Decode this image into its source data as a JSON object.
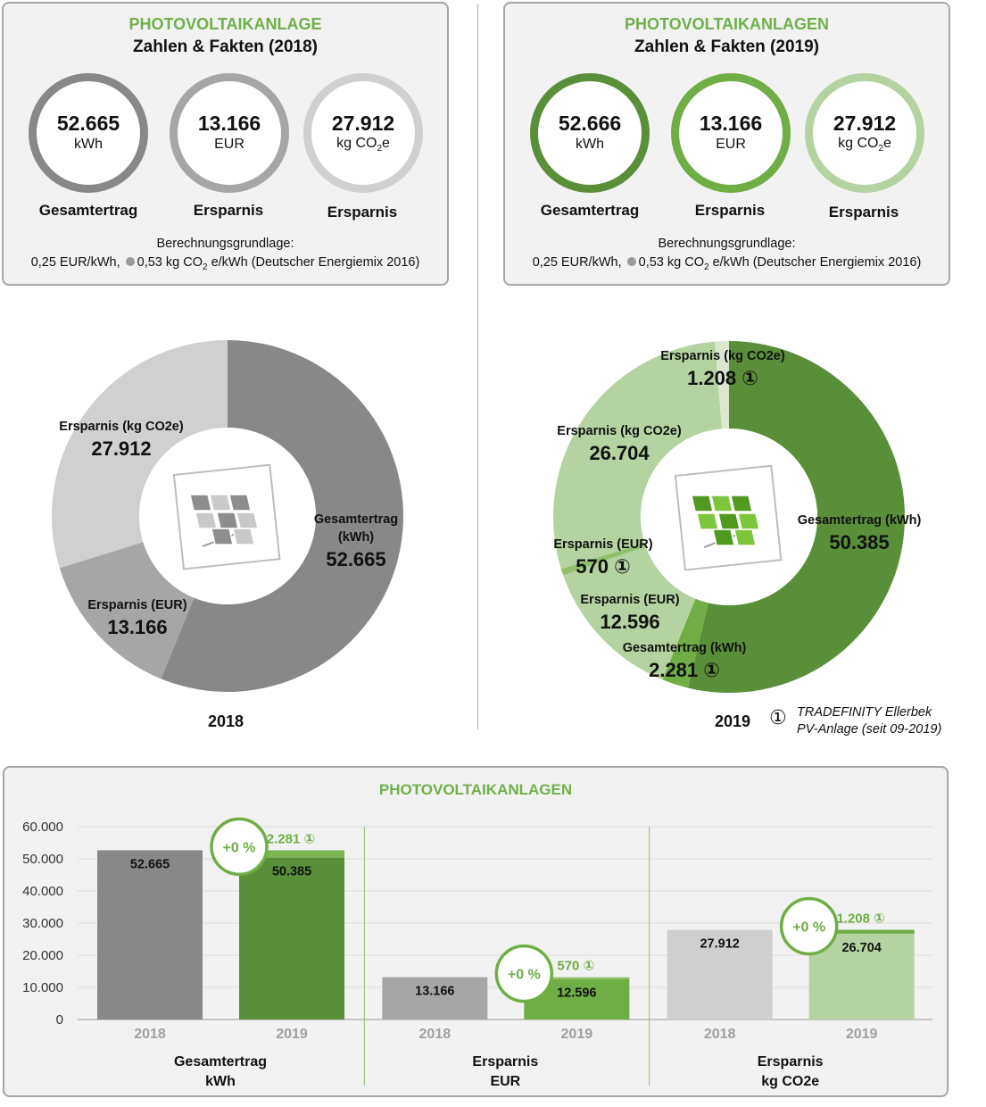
{
  "panel_2018": {
    "title": "PHOTOVOLTAIKANLAGE",
    "subtitle": "Zahlen & Fakten (2018)",
    "rings": [
      {
        "value": "52.665",
        "unit": "kWh",
        "label": "Gesamtertrag"
      },
      {
        "value": "13.166",
        "unit": "EUR",
        "label": "Ersparnis"
      },
      {
        "value": "27.912",
        "unit": "kg CO",
        "unit_sub": "2",
        "unit_tail": "e",
        "label": "Ersparnis"
      }
    ],
    "basis_line1": "Berechnungsgrundlage:",
    "basis_a": "0,25 EUR/kWh,",
    "basis_b": "0,53 kg CO",
    "basis_sub": "2",
    "basis_c": " e/kWh (Deutscher Energiemix 2016)"
  },
  "panel_2019": {
    "title": "PHOTOVOLTAIKANLAGEN",
    "subtitle": "Zahlen & Fakten (2019)",
    "rings": [
      {
        "value": "52.666",
        "unit": "kWh",
        "label": "Gesamtertrag"
      },
      {
        "value": "13.166",
        "unit": "EUR",
        "label": "Ersparnis"
      },
      {
        "value": "27.912",
        "unit": "kg CO",
        "unit_sub": "2",
        "unit_tail": "e",
        "label": "Ersparnis"
      }
    ],
    "basis_line1": "Berechnungsgrundlage:",
    "basis_a": "0,25 EUR/kWh,",
    "basis_b": "0,53 kg CO",
    "basis_sub": "2",
    "basis_c": " e/kWh (Deutscher Energiemix 2016)"
  },
  "footnote": {
    "symbol": "①",
    "line1": "TRADEFINITY Ellerbek",
    "line2": "PV-Anlage (seit 09-2019)"
  },
  "colors": {
    "dark_gray": "#888888",
    "mid_gray": "#a6a6a6",
    "light_gray": "#d0d0d0",
    "dark_green": "#5a8f39",
    "mid_green": "#6fad45",
    "light_green": "#b5d3a0",
    "title_green": "#70b04a"
  },
  "chart_data": [
    {
      "type": "pie",
      "title": "2018",
      "donut": true,
      "slices": [
        {
          "label": "Gesamtertrag (kWh)",
          "value": 52665,
          "display": "52.665",
          "color": "#888888"
        },
        {
          "label": "Ersparnis (EUR)",
          "value": 13166,
          "display": "13.166",
          "color": "#a6a6a6"
        },
        {
          "label": "Ersparnis (kg CO2e)",
          "value": 27912,
          "display": "27.912",
          "color": "#d0d0d0"
        }
      ]
    },
    {
      "type": "pie",
      "title": "2019",
      "donut": true,
      "slices": [
        {
          "label": "Gesamtertrag (kWh)",
          "value": 50385,
          "display": "50.385",
          "color": "#5a8f39"
        },
        {
          "label": "Gesamtertrag (kWh)",
          "value": 2281,
          "display": "2.281 ①",
          "color": "#6fad45"
        },
        {
          "label": "Ersparnis (EUR)",
          "value": 12596,
          "display": "12.596",
          "color": "#b5d3a0"
        },
        {
          "label": "Ersparnis (EUR)",
          "value": 570,
          "display": "570 ①",
          "color": "#8fc06a"
        },
        {
          "label": "Ersparnis (kg CO2e)",
          "value": 26704,
          "display": "26.704",
          "color": "#b5d3a0"
        },
        {
          "label": "Ersparnis (kg CO2e)",
          "value": 1208,
          "display": "1.208 ①",
          "color": "#d9e8cf"
        }
      ]
    },
    {
      "type": "bar",
      "title": "PHOTOVOLTAIKANLAGEN",
      "stacked": true,
      "ylim": [
        0,
        60000
      ],
      "yticks": [
        "0",
        "10.000",
        "20.000",
        "30.000",
        "40.000",
        "50.000",
        "60.000"
      ],
      "grid": true,
      "groups": [
        {
          "label1": "Gesamtertrag",
          "label2": "kWh",
          "bars": [
            {
              "year": "2018",
              "base": 52665,
              "base_label": "52.665",
              "color": "#888888"
            },
            {
              "year": "2019",
              "base": 50385,
              "base_label": "50.385",
              "top": 2281,
              "top_label": "2.281 ①",
              "color": "#5a8f39",
              "top_color": "#7ab552",
              "change": "+0 %"
            }
          ]
        },
        {
          "label1": "Ersparnis",
          "label2": "EUR",
          "bars": [
            {
              "year": "2018",
              "base": 13166,
              "base_label": "13.166",
              "color": "#a6a6a6"
            },
            {
              "year": "2019",
              "base": 12596,
              "base_label": "12.596",
              "top": 570,
              "top_label": "570 ①",
              "color": "#6fad45",
              "top_color": "#8fc06a",
              "change": "+0 %"
            }
          ]
        },
        {
          "label1": "Ersparnis",
          "label2": "kg CO2e",
          "bars": [
            {
              "year": "2018",
              "base": 27912,
              "base_label": "27.912",
              "color": "#cfcfcf"
            },
            {
              "year": "2019",
              "base": 26704,
              "base_label": "26.704",
              "top": 1208,
              "top_label": "1.208 ①",
              "color": "#b5d3a0",
              "top_color": "#6fad45",
              "change": "+0 %"
            }
          ]
        }
      ]
    }
  ]
}
